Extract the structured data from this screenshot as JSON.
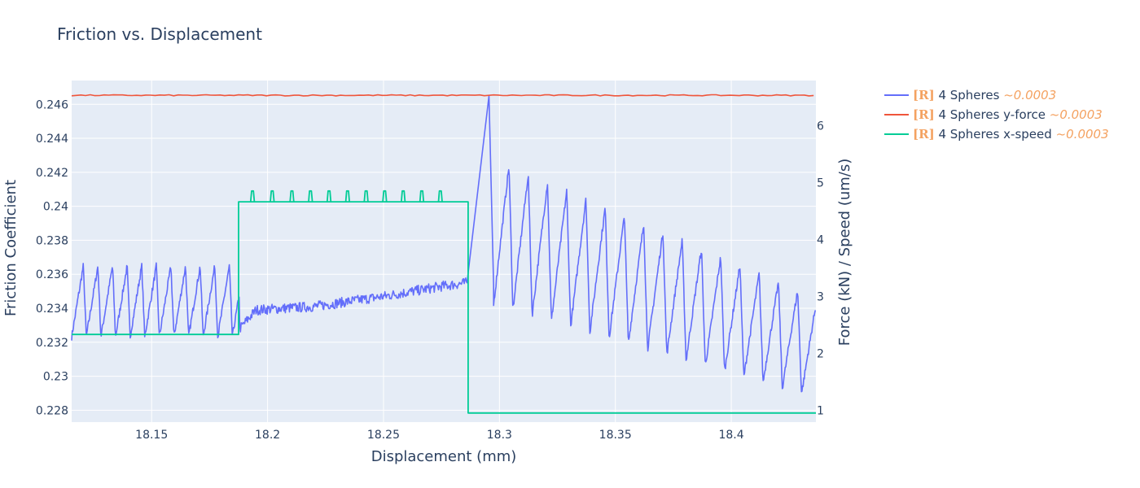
{
  "chart_data": {
    "type": "line",
    "title": "Friction vs. Displacement",
    "xlabel": "Displacement (mm)",
    "ylabel": "Friction Coefficient",
    "y2label": "Force (kN) / Speed (um/s)",
    "xlim": [
      18.1155,
      18.4365
    ],
    "ylim": [
      0.2273,
      0.2474
    ],
    "y2lim": [
      0.79,
      6.79
    ],
    "x_ticks": [
      18.15,
      18.2,
      18.25,
      18.3,
      18.35,
      18.4
    ],
    "x_tick_labels": [
      "18.15",
      "18.2",
      "18.25",
      "18.3",
      "18.35",
      "18.4"
    ],
    "y_ticks": [
      0.228,
      0.23,
      0.232,
      0.234,
      0.236,
      0.238,
      0.24,
      0.242,
      0.244,
      0.246
    ],
    "y_tick_labels": [
      "0.228",
      "0.23",
      "0.232",
      "0.234",
      "0.236",
      "0.238",
      "0.24",
      "0.242",
      "0.244",
      "0.246"
    ],
    "y2_ticks": [
      1,
      2,
      3,
      4,
      5,
      6
    ],
    "y2_tick_labels": [
      "1",
      "2",
      "3",
      "4",
      "5",
      "6"
    ],
    "grid": true,
    "legend_position": "top-right, outside plot",
    "background": "#e5ecf6",
    "series": [
      {
        "name": "4 Spheres",
        "tag": "[R]",
        "suffix": "~0.0003",
        "axis": "left",
        "color": "#636efa",
        "segments": [
          {
            "pattern": "sawtooth",
            "x_start": 18.1155,
            "x_end": 18.188,
            "y_low": 0.2323,
            "y_high": 0.2365,
            "period": 0.0063
          },
          {
            "pattern": "ramp",
            "points": [
              [
                18.188,
                0.2328
              ],
              [
                18.195,
                0.2339
              ],
              [
                18.22,
                0.2341
              ],
              [
                18.25,
                0.2347
              ],
              [
                18.2755,
                0.2353
              ],
              [
                18.286,
                0.2355
              ]
            ]
          },
          {
            "pattern": "spike",
            "points": [
              [
                18.286,
                0.2355
              ],
              [
                18.2955,
                0.2465
              ],
              [
                18.2975,
                0.2353
              ]
            ]
          },
          {
            "pattern": "decaying_sawtooth",
            "x_start": 18.2975,
            "x_end": 18.4365,
            "peak_start": 0.2428,
            "peak_end": 0.2346,
            "low_start": 0.2342,
            "low_end": 0.2287,
            "period": 0.0083
          }
        ]
      },
      {
        "name": "4 Spheres y-force",
        "tag": "[R]",
        "suffix": "~0.0003",
        "axis": "right",
        "color": "#ef553b",
        "constant": 6.53
      },
      {
        "name": "4 Spheres x-speed",
        "tag": "[R]",
        "suffix": "~0.0003",
        "axis": "right",
        "color": "#00cc96",
        "steps": [
          [
            18.1155,
            2.33
          ],
          [
            18.1875,
            4.66
          ],
          [
            18.2865,
            0.95
          ],
          [
            18.4365,
            0.95
          ]
        ],
        "spike_peak": 4.85,
        "spikes_x": [
          18.1935,
          18.202,
          18.2105,
          18.2185,
          18.2265,
          18.2345,
          18.2425,
          18.2505,
          18.2585,
          18.2665,
          18.2745
        ]
      }
    ]
  }
}
